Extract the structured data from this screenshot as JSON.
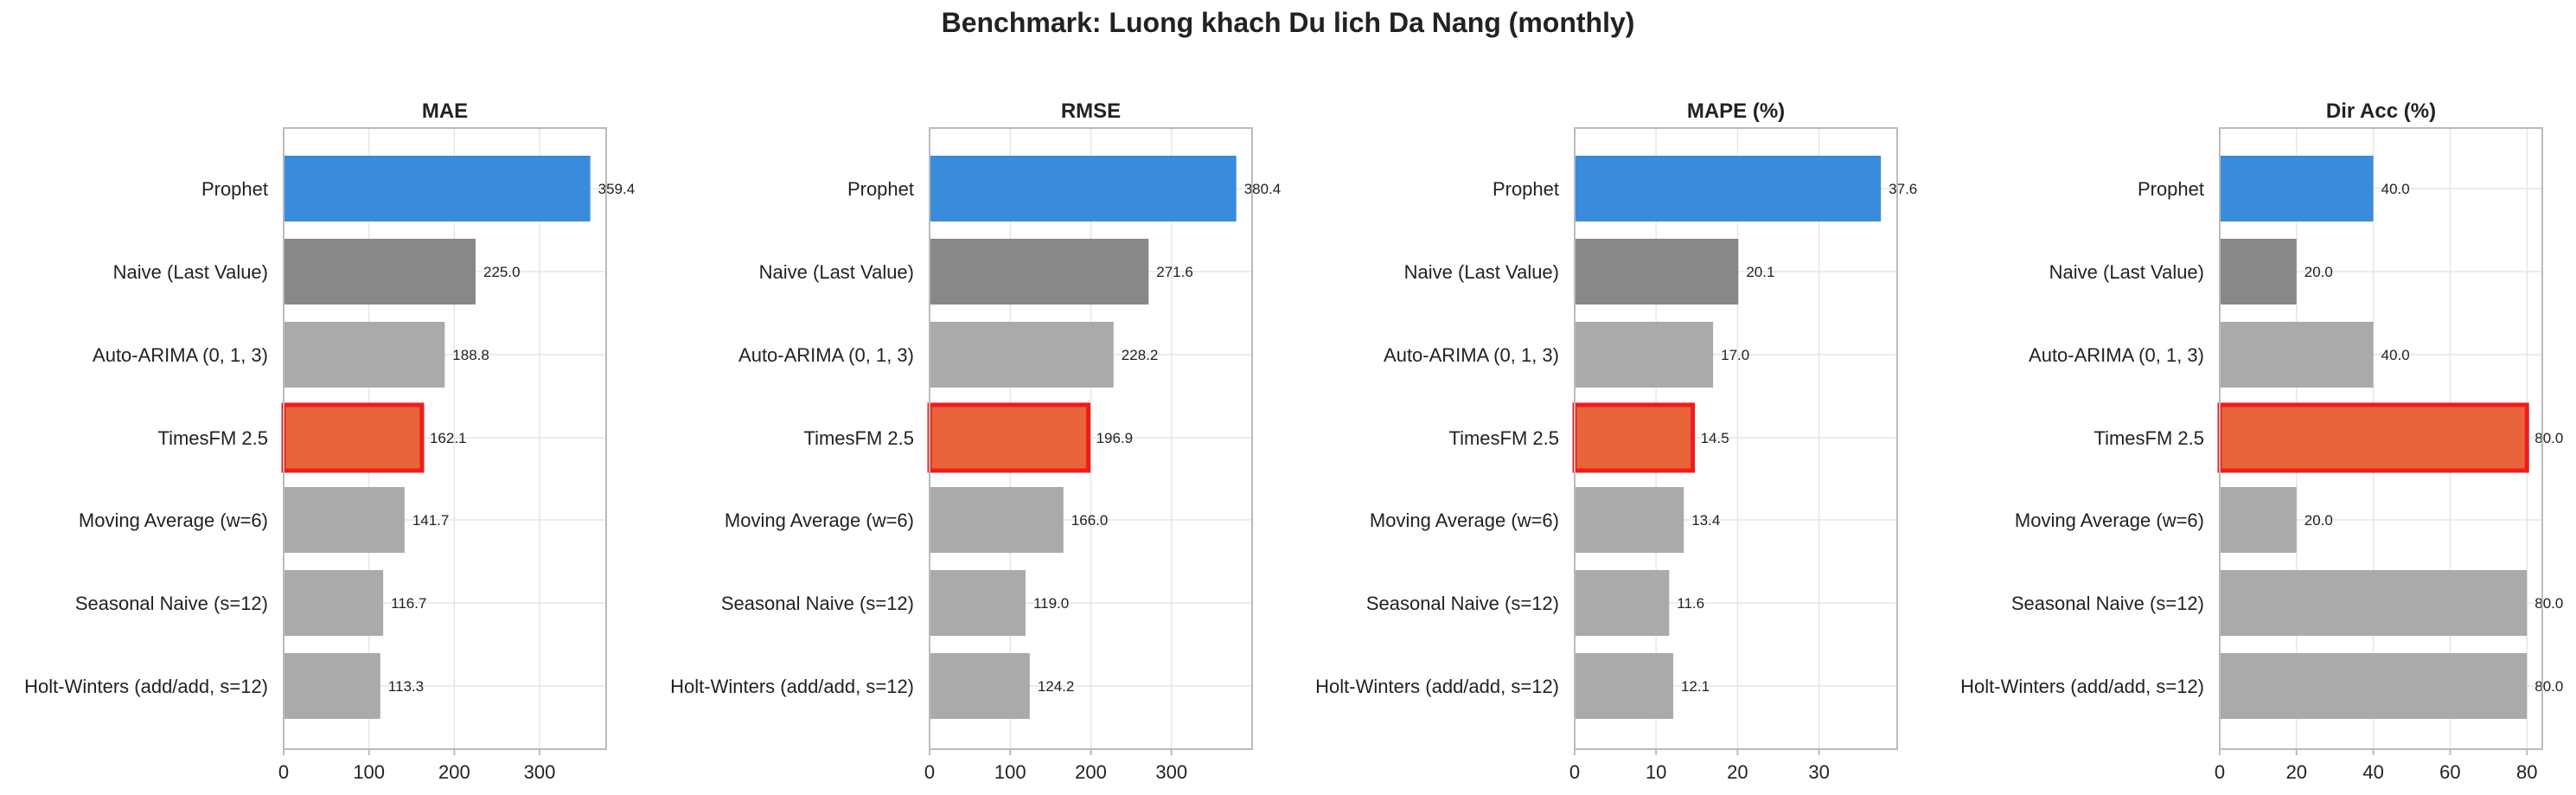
{
  "title": "Benchmark: Luong khach Du lich Da Nang (monthly)",
  "colors": {
    "prophet": "#3a8bdc",
    "naive": "#888888",
    "other": "#aaaaaa",
    "timesfm": "#e9643a",
    "timesfm_edge": "#ee1c1c",
    "grid": "#e6e6e6",
    "axis": "#bbbbbb"
  },
  "chart_data": [
    {
      "type": "bar",
      "orientation": "horizontal",
      "title": "MAE",
      "categories": [
        "Prophet",
        "Naive (Last Value)",
        "Auto-ARIMA (0, 1, 3)",
        "TimesFM 2.5",
        "Moving Average (w=6)",
        "Seasonal Naive (s=12)",
        "Holt-Winters (add/add, s=12)"
      ],
      "values": [
        359.4,
        225.0,
        188.8,
        162.1,
        141.7,
        116.7,
        113.3
      ],
      "value_labels": [
        "359.4",
        "225.0",
        "188.8",
        "162.1",
        "141.7",
        "116.7",
        "113.3"
      ],
      "xlim": [
        0,
        378
      ],
      "xticks": [
        0,
        100,
        200,
        300
      ],
      "xtick_labels": [
        "0",
        "100",
        "200",
        "300"
      ],
      "grid": true
    },
    {
      "type": "bar",
      "orientation": "horizontal",
      "title": "RMSE",
      "categories": [
        "Prophet",
        "Naive (Last Value)",
        "Auto-ARIMA (0, 1, 3)",
        "TimesFM 2.5",
        "Moving Average (w=6)",
        "Seasonal Naive (s=12)",
        "Holt-Winters (add/add, s=12)"
      ],
      "values": [
        380.4,
        271.6,
        228.2,
        196.9,
        166.0,
        119.0,
        124.2
      ],
      "value_labels": [
        "380.4",
        "271.6",
        "228.2",
        "196.9",
        "166.0",
        "119.0",
        "124.2"
      ],
      "xlim": [
        0,
        400
      ],
      "xticks": [
        0,
        100,
        200,
        300
      ],
      "xtick_labels": [
        "0",
        "100",
        "200",
        "300"
      ],
      "grid": true
    },
    {
      "type": "bar",
      "orientation": "horizontal",
      "title": "MAPE (%)",
      "categories": [
        "Prophet",
        "Naive (Last Value)",
        "Auto-ARIMA (0, 1, 3)",
        "TimesFM 2.5",
        "Moving Average (w=6)",
        "Seasonal Naive (s=12)",
        "Holt-Winters (add/add, s=12)"
      ],
      "values": [
        37.6,
        20.1,
        17.0,
        14.5,
        13.4,
        11.6,
        12.1
      ],
      "value_labels": [
        "37.6",
        "20.1",
        "17.0",
        "14.5",
        "13.4",
        "11.6",
        "12.1"
      ],
      "xlim": [
        0,
        39.6
      ],
      "xticks": [
        0,
        10,
        20,
        30
      ],
      "xtick_labels": [
        "0",
        "10",
        "20",
        "30"
      ],
      "grid": true
    },
    {
      "type": "bar",
      "orientation": "horizontal",
      "title": "Dir Acc (%)",
      "categories": [
        "Prophet",
        "Naive (Last Value)",
        "Auto-ARIMA (0, 1, 3)",
        "TimesFM 2.5",
        "Moving Average (w=6)",
        "Seasonal Naive (s=12)",
        "Holt-Winters (add/add, s=12)"
      ],
      "values": [
        40.0,
        20.0,
        40.0,
        80.0,
        20.0,
        80.0,
        80.0
      ],
      "value_labels": [
        "40.0",
        "20.0",
        "40.0",
        "80.0",
        "20.0",
        "80.0",
        "80.0"
      ],
      "xlim": [
        0,
        84
      ],
      "xticks": [
        0,
        20,
        40,
        60,
        80
      ],
      "xtick_labels": [
        "0",
        "20",
        "40",
        "60",
        "80"
      ],
      "grid": true
    }
  ]
}
